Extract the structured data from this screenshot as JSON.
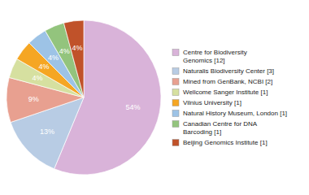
{
  "chart_data": {
    "type": "pie",
    "categories": [
      "Centre for Biodiversity\nGenomics [12]",
      "Naturalis Biodiversity Center [3]",
      "Mined from GenBank, NCBI [2]",
      "Wellcome Sanger Institute [1]",
      "Vilnius University [1]",
      "Natural History Museum, London [1]",
      "Canadian Centre for DNA\nBarcoding [1]",
      "Beijing Genomics Institute [1]"
    ],
    "values": [
      54,
      13,
      9,
      4,
      4,
      4,
      4,
      4
    ],
    "value_labels": [
      "54%",
      "13%",
      "9%",
      "4%",
      "4%",
      "4%",
      "4%",
      "4%"
    ],
    "colors": [
      "#d9b3d9",
      "#b8cce4",
      "#e8a090",
      "#d6e0a0",
      "#f5a623",
      "#9dc3e6",
      "#93c47d",
      "#c0522a"
    ],
    "data_labels": true,
    "legend": "right"
  }
}
